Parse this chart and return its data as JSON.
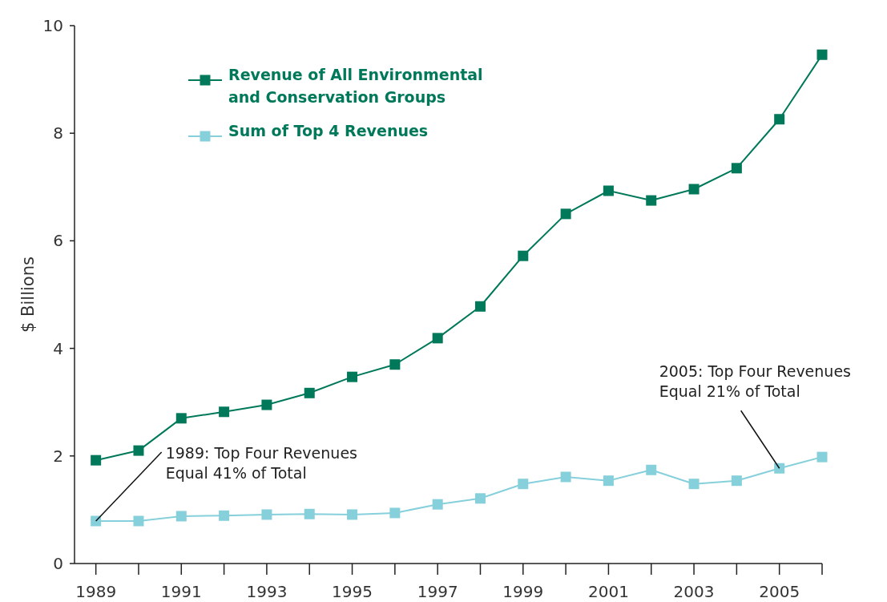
{
  "chart_data": {
    "type": "line",
    "ylabel": "$ Billions",
    "x": [
      1989,
      1990,
      1991,
      1992,
      1993,
      1994,
      1995,
      1996,
      1997,
      1998,
      1999,
      2000,
      2001,
      2002,
      2003,
      2004,
      2005,
      2006
    ],
    "series": [
      {
        "name": "Revenue of All Environmental and Conservation Groups",
        "color": "#00785a",
        "values": [
          1.92,
          2.1,
          2.7,
          2.82,
          2.95,
          3.17,
          3.47,
          3.7,
          4.19,
          4.78,
          5.72,
          6.5,
          6.93,
          6.75,
          6.96,
          7.35,
          8.26,
          9.46
        ]
      },
      {
        "name": "Sum of Top 4 Revenues",
        "color": "#86d0dc",
        "values": [
          0.79,
          0.79,
          0.88,
          0.89,
          0.91,
          0.92,
          0.91,
          0.94,
          1.1,
          1.21,
          1.48,
          1.61,
          1.54,
          1.74,
          1.48,
          1.54,
          1.77,
          1.98
        ]
      }
    ],
    "xlim": [
      1988.5,
      2006
    ],
    "xticks": [
      1989,
      {
        "value": 1990,
        "label": null
      },
      1991,
      {
        "value": 1992,
        "label": null
      },
      1993,
      {
        "value": 1994,
        "label": null
      },
      1995,
      {
        "value": 1996,
        "label": null
      },
      1997,
      {
        "value": 1998,
        "label": null
      },
      1999,
      {
        "value": 2000,
        "label": null
      },
      2001,
      {
        "value": 2002,
        "label": null
      },
      2003,
      {
        "value": 2004,
        "label": null
      },
      2005,
      {
        "value": 2006,
        "label": null
      }
    ],
    "ylim": [
      0,
      10
    ],
    "yticks": [
      0,
      2,
      4,
      6,
      8,
      10
    ],
    "annotations": [
      {
        "text": "1989: Top Four Revenues Equal 41% of Total",
        "x": 1989,
        "y": 0.79
      },
      {
        "text": "2005: Top Four Revenues Equal 21% of Total",
        "x": 2005,
        "y": 1.77
      }
    ],
    "grid": false,
    "legend": "top left",
    "marker": "square",
    "line_style": "solid"
  }
}
